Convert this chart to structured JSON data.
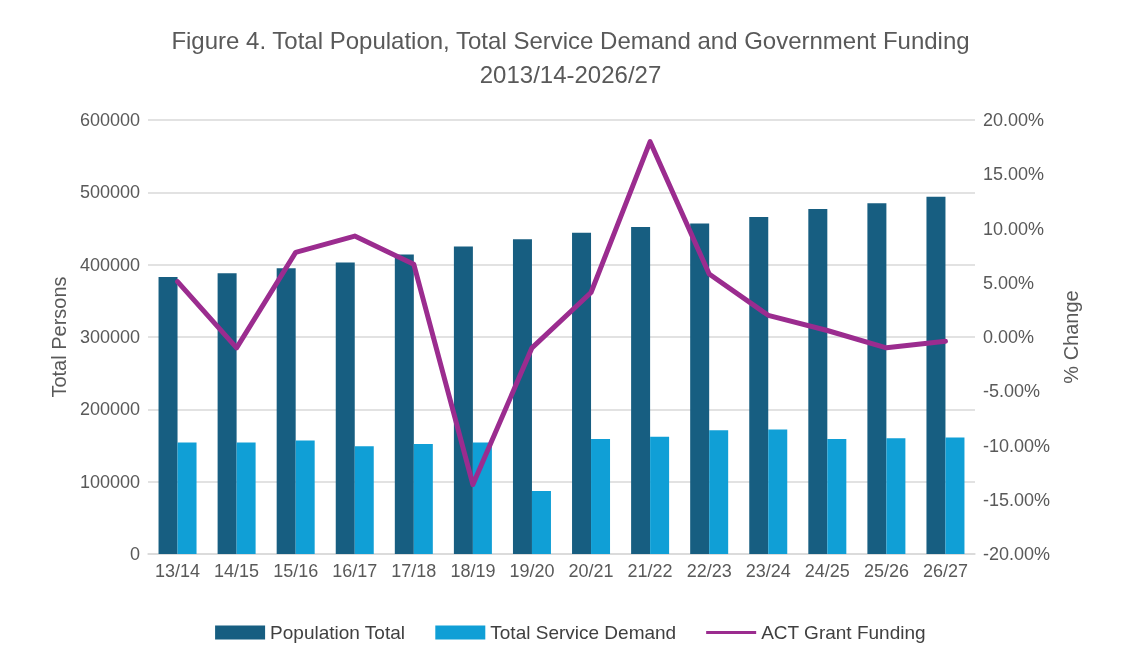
{
  "chart_data": {
    "type": "bar",
    "title": "Figure 4. Total Population, Total Service Demand and Government Funding\n2013/14-2026/27",
    "ylabel": "Total Persons",
    "y2label": "% Change",
    "categories": [
      "13/14",
      "14/15",
      "15/16",
      "16/17",
      "17/18",
      "18/19",
      "19/20",
      "20/21",
      "21/22",
      "22/23",
      "23/24",
      "24/25",
      "25/26",
      "26/27"
    ],
    "series": [
      {
        "name": "Population Total",
        "color": "#175e81",
        "values": [
          383000,
          388000,
          395000,
          403000,
          414000,
          425000,
          435000,
          444000,
          452000,
          457000,
          466000,
          477000,
          485000,
          494000
        ]
      },
      {
        "name": "Total Service Demand",
        "color": "#109fd6",
        "values": [
          154000,
          154000,
          157000,
          149000,
          152000,
          154000,
          87000,
          159000,
          162000,
          171000,
          172000,
          159000,
          160000,
          161000
        ]
      },
      {
        "name": "ACT Grant Funding",
        "type": "line",
        "axis": "y2",
        "color": "#9b2c8f",
        "values": [
          5.1,
          -1.0,
          7.8,
          9.3,
          6.7,
          -13.6,
          -1.0,
          4.1,
          18.0,
          5.8,
          2.0,
          0.6,
          -1.0,
          -0.4
        ]
      }
    ],
    "ylim": [
      0,
      600000
    ],
    "yticks": [
      0,
      100000,
      200000,
      300000,
      400000,
      500000,
      600000
    ],
    "y2lim": [
      -20,
      20
    ],
    "y2ticks": [
      {
        "value": -20,
        "label": "-20.00%"
      },
      {
        "value": -15,
        "label": "-15.00%"
      },
      {
        "value": -10,
        "label": "-10.00%"
      },
      {
        "value": -5,
        "label": "-5.00%"
      },
      {
        "value": 0,
        "label": "0.00%"
      },
      {
        "value": 5,
        "label": "5.00%"
      },
      {
        "value": 10,
        "label": "10.00%"
      },
      {
        "value": 15,
        "label": "15.00%"
      },
      {
        "value": 20,
        "label": "20.00%"
      }
    ],
    "grid": "y",
    "legend": "bottom",
    "marker": "none",
    "line_style": "solid"
  }
}
